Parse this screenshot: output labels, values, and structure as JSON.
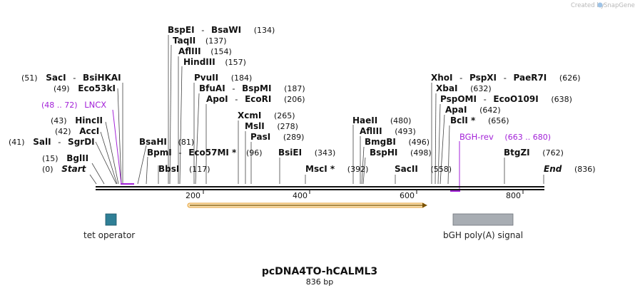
{
  "credit": {
    "text": "Created by",
    "brand": "SnapGene"
  },
  "plasmid": {
    "name": "pcDNA4TO-hCALML3",
    "length_label": "836 bp"
  },
  "ticks": [
    "200",
    "400",
    "600",
    "800"
  ],
  "sites": [
    {
      "name": "Start",
      "pos": "(0)",
      "italic": true
    },
    {
      "name": "BglII",
      "pos": "(15)"
    },
    {
      "name": "SalI",
      "name2": "SgrDI",
      "pos": "(41)"
    },
    {
      "name": "AccI",
      "pos": "(42)"
    },
    {
      "name": "HincII",
      "pos": "(43)"
    },
    {
      "name": "Eco53kI",
      "pos": "(49)"
    },
    {
      "name": "SacI",
      "name2": "BsiHKAI",
      "pos": "(51)"
    },
    {
      "name": "BsaHI",
      "pos": "(81)"
    },
    {
      "name": "BpmI",
      "name2": "Eco57MI *",
      "pos": "(96)"
    },
    {
      "name": "BbsI",
      "pos": "(117)"
    },
    {
      "name": "BspEI",
      "name2": "BsaWI",
      "pos": "(134)"
    },
    {
      "name": "TaqII",
      "pos": "(137)"
    },
    {
      "name": "AflIII",
      "pos": "(154)"
    },
    {
      "name": "HindIII",
      "pos": "(157)"
    },
    {
      "name": "PvuII",
      "pos": "(184)"
    },
    {
      "name": "BfuAI",
      "name2": "BspMI",
      "pos": "(187)"
    },
    {
      "name": "ApoI",
      "name2": "EcoRI",
      "pos": "(206)"
    },
    {
      "name": "XcmI",
      "pos": "(265)"
    },
    {
      "name": "MslI",
      "pos": "(278)"
    },
    {
      "name": "PasI",
      "pos": "(289)"
    },
    {
      "name": "BsiEI",
      "pos": "(343)"
    },
    {
      "name": "MscI *",
      "pos": "(392)"
    },
    {
      "name": "HaeII",
      "pos": "(480)"
    },
    {
      "name": "AflIII",
      "pos": "(493)"
    },
    {
      "name": "BmgBI",
      "pos": "(496)"
    },
    {
      "name": "BspHI",
      "pos": "(498)"
    },
    {
      "name": "SacII",
      "pos": "(558)"
    },
    {
      "name": "XhoI",
      "name2": "PspXI",
      "name3": "PaeR7I",
      "pos": "(626)"
    },
    {
      "name": "XbaI",
      "pos": "(632)"
    },
    {
      "name": "PspOMI",
      "name2": "EcoO109I",
      "pos": "(638)"
    },
    {
      "name": "ApaI",
      "pos": "(642)"
    },
    {
      "name": "BclI *",
      "pos": "(656)"
    },
    {
      "name": "BtgZI",
      "pos": "(762)"
    },
    {
      "name": "End",
      "pos": "(836)",
      "italic": true
    }
  ],
  "primers": [
    {
      "name": "LNCX",
      "range": "(48 .. 72)"
    },
    {
      "name": "BGH-rev",
      "range": "(663 .. 680)"
    }
  ],
  "features": [
    {
      "name": "tet operator"
    },
    {
      "name": "bGH poly(A) signal"
    }
  ],
  "colors": {
    "tet_operator": "#2f7f96",
    "bgh_polya": "#a8adb3",
    "orf": "#f0a830",
    "primer": "#a322d8",
    "backbone": "#111111"
  }
}
